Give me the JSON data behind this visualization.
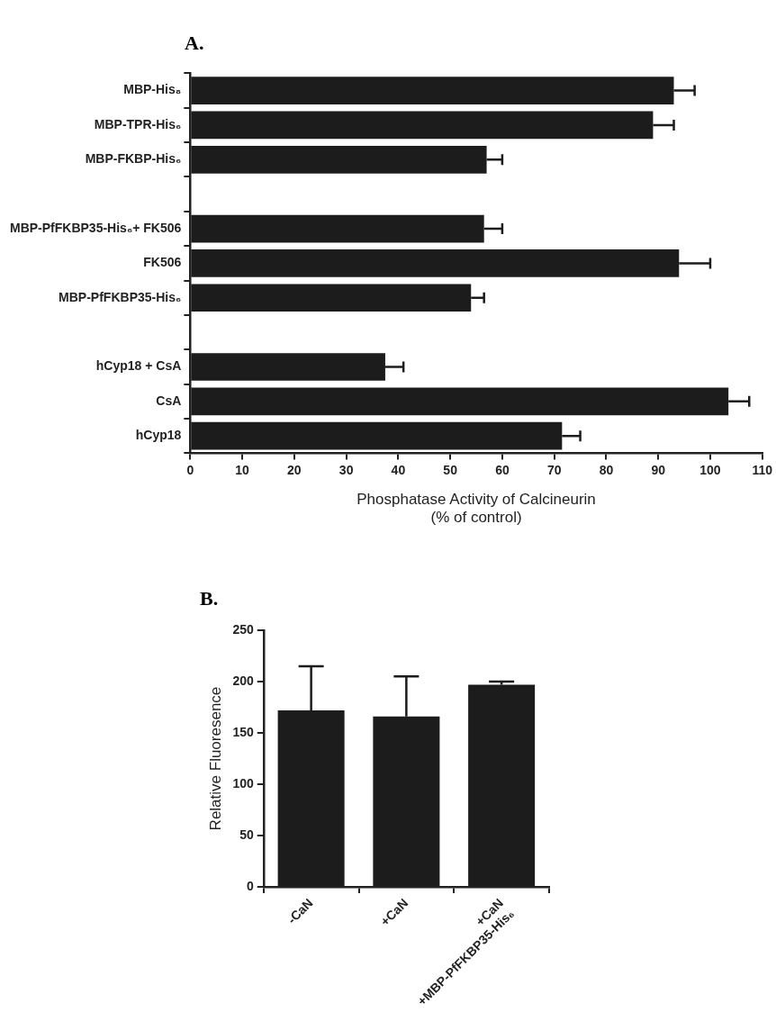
{
  "chart_data": [
    {
      "type": "bar",
      "title": "A.",
      "orientation": "horizontal",
      "xlabel": "Phosphatase Activity of Calcineurin\n(% of control)",
      "categories": [
        "MBP-His₈",
        "MBP-TPR-His₆",
        "MBP-FKBP-His₆",
        null,
        "MBP-PfFKBP35-His₆+ FK506",
        "FK506",
        "MBP-PfFKBP35-His₆",
        null,
        "hCyp18 + CsA",
        "CsA",
        "hCyp18"
      ],
      "values": [
        93,
        89,
        57,
        null,
        56.5,
        94,
        54,
        null,
        37.5,
        103.5,
        71.5
      ],
      "errors": [
        [
          93,
          97
        ],
        [
          89,
          93
        ],
        [
          57,
          60
        ],
        null,
        [
          56.5,
          60
        ],
        [
          94,
          100
        ],
        [
          54,
          56.5
        ],
        null,
        [
          37.5,
          41
        ],
        [
          103.5,
          107.5
        ],
        [
          71.5,
          75
        ]
      ],
      "color": "#1c1c1c",
      "xlim": [
        0,
        110
      ],
      "xticks": [
        0,
        10,
        20,
        30,
        40,
        50,
        60,
        70,
        80,
        90,
        100,
        110
      ],
      "grid": false,
      "legend": false
    },
    {
      "type": "bar",
      "title": "B.",
      "ylabel": "Relative Fluoresence",
      "categories": [
        "-CaN",
        "+CaN",
        "+CaN\n+MBP-PfFKBP35-His₆"
      ],
      "values": [
        172,
        166,
        197
      ],
      "errors": [
        [
          172,
          215
        ],
        [
          166,
          205
        ],
        [
          197,
          200
        ]
      ],
      "color": "#1c1c1c",
      "ylim": [
        0,
        250
      ],
      "yticks": [
        0,
        50,
        100,
        150,
        200,
        250
      ],
      "grid": false,
      "legend": false
    }
  ]
}
